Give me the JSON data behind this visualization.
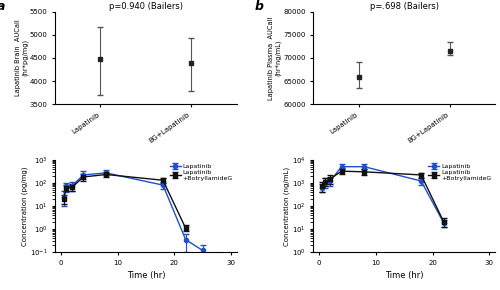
{
  "panel_a_title": "p=0.940 (Bailers)",
  "panel_b_title": "p=.698 (Bailers)",
  "panel_a_ylabel": "Lapatinib Brain  AUCall\n(hr*pg/mg)",
  "panel_b_ylabel": "Lapatinib Plasma  AUCall\n(hr*ng/mL)",
  "panel_a_bar_means": [
    4480,
    4390
  ],
  "panel_a_bar_errs_upper": [
    5160,
    4930
  ],
  "panel_a_bar_errs_lower": [
    3700,
    3780
  ],
  "panel_a_ylim": [
    3500,
    5500
  ],
  "panel_a_yticks": [
    3500,
    4000,
    4500,
    5000,
    5500
  ],
  "panel_b_bar_means": [
    65800,
    71500
  ],
  "panel_b_bar_errs_upper": [
    69200,
    73500
  ],
  "panel_b_bar_errs_lower": [
    63500,
    70700
  ],
  "panel_b_ylim": [
    60000,
    80000
  ],
  "panel_b_yticks": [
    60000,
    65000,
    70000,
    75000,
    80000
  ],
  "bar_xlabels": [
    "Lapatinib",
    "BG+Lapatinib"
  ],
  "brain_time": [
    0.5,
    1,
    2,
    4,
    8,
    18,
    22,
    25
  ],
  "brain_lap_mean": [
    25,
    70,
    75,
    220,
    270,
    80,
    0.35,
    0.12
  ],
  "brain_lap_err_up": [
    20,
    30,
    35,
    100,
    80,
    30,
    0.25,
    0.08
  ],
  "brain_lap_err_dn": [
    15,
    30,
    30,
    80,
    60,
    25,
    0.25,
    0.04
  ],
  "brain_combo_mean": [
    20,
    60,
    65,
    180,
    230,
    130,
    1.1,
    null
  ],
  "brain_combo_err_up": [
    10,
    20,
    25,
    70,
    70,
    40,
    0.4,
    null
  ],
  "brain_combo_err_dn": [
    8,
    15,
    20,
    60,
    50,
    35,
    0.3,
    null
  ],
  "brain_ylim_log": [
    0.1,
    1000
  ],
  "brain_ylabel": "Concentration (pg/mg)",
  "plasma_time": [
    0.5,
    1,
    2,
    4,
    8,
    18,
    22,
    25
  ],
  "plasma_lap_mean": [
    600,
    1000,
    1200,
    5000,
    5000,
    1200,
    18,
    null
  ],
  "plasma_lap_err_up": [
    300,
    600,
    600,
    1500,
    1500,
    500,
    8,
    null
  ],
  "plasma_lap_err_dn": [
    200,
    400,
    500,
    1200,
    1200,
    400,
    6,
    null
  ],
  "plasma_combo_mean": [
    700,
    1100,
    1500,
    3200,
    3000,
    2200,
    20,
    null
  ],
  "plasma_combo_err_up": [
    400,
    500,
    700,
    1000,
    1000,
    600,
    9,
    null
  ],
  "plasma_combo_err_dn": [
    300,
    400,
    600,
    800,
    800,
    500,
    7,
    null
  ],
  "plasma_ylim_log": [
    1,
    10000
  ],
  "plasma_ylabel": "Concentration (ng/mL)",
  "time_xlabel": "Time (hr)",
  "legend_labels": [
    "Lapatinib",
    "Lapatinib\n+BotryllamideG"
  ],
  "line_color_blue": "#1f4fcf",
  "line_color_black": "#111111",
  "background_color": "#ffffff",
  "panel_bg": "#ffffff"
}
